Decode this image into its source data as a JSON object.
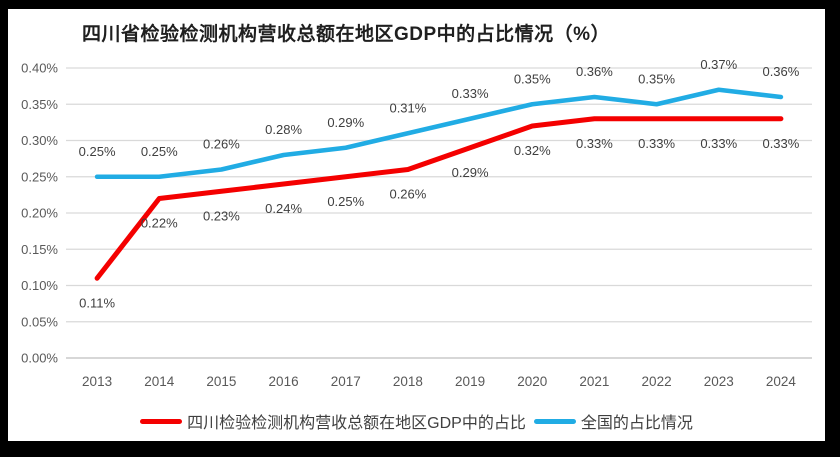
{
  "chart_data": {
    "type": "line",
    "title": "四川省检验检测机构营收总额在地区GDP中的占比情况（%）",
    "categories": [
      "2013",
      "2014",
      "2015",
      "2016",
      "2017",
      "2018",
      "2019",
      "2020",
      "2021",
      "2022",
      "2023",
      "2024"
    ],
    "series": [
      {
        "name": "四川检验检测机构营收总额在地区GDP中的占比",
        "color": "#f40000",
        "values": [
          0.11,
          0.22,
          0.23,
          0.24,
          0.25,
          0.26,
          0.29,
          0.32,
          0.33,
          0.33,
          0.33,
          0.33
        ],
        "labels": [
          "0.11%",
          "0.22%",
          "0.23%",
          "0.24%",
          "0.25%",
          "0.26%",
          "0.29%",
          "0.32%",
          "0.33%",
          "0.33%",
          "0.33%",
          "0.33%"
        ],
        "label_position": "below"
      },
      {
        "name": "全国的占比情况",
        "color": "#21ace4",
        "values": [
          0.25,
          0.25,
          0.26,
          0.28,
          0.29,
          0.31,
          0.33,
          0.35,
          0.36,
          0.35,
          0.37,
          0.36
        ],
        "labels": [
          "0.25%",
          "0.25%",
          "0.26%",
          "0.28%",
          "0.29%",
          "0.31%",
          "0.33%",
          "0.35%",
          "0.36%",
          "0.35%",
          "0.37%",
          "0.36%"
        ],
        "label_position": "above"
      }
    ],
    "y_axis": {
      "min": 0,
      "max": 0.4,
      "step": 0.05,
      "tick_labels": [
        "0.00%",
        "0.05%",
        "0.10%",
        "0.15%",
        "0.20%",
        "0.25%",
        "0.30%",
        "0.35%",
        "0.40%"
      ]
    },
    "grid": true,
    "grid_color": "#d9d9d9",
    "axis_color": "#bfbfbf",
    "legend_position": "bottom"
  }
}
